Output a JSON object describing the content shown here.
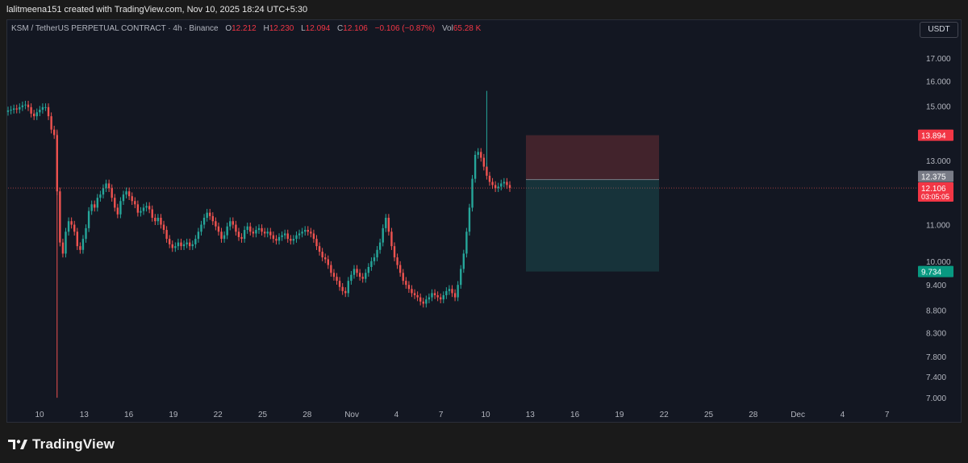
{
  "header": {
    "credit": "lalitmeena151 created with TradingView.com, Nov 10, 2025 18:24 UTC+5:30"
  },
  "legend": {
    "symbol": "KSM / TetherUS PERPETUAL CONTRACT · 4h · Binance",
    "o_label": "O",
    "o_value": "12.212",
    "h_label": "H",
    "h_value": "12.230",
    "l_label": "L",
    "l_value": "12.094",
    "c_label": "C",
    "c_value": "12.106",
    "change": "−0.106 (−0.87%)",
    "vol_label": "Vol",
    "vol_value": "65.28 K"
  },
  "currency_button": "USDT",
  "brand": {
    "name": "TradingView",
    "icon": "tradingview-logo-icon"
  },
  "colors": {
    "up": "#26a69a",
    "down": "#ef5350",
    "stop_zone": "#ef5350",
    "target_zone": "#26a69a",
    "background": "#131722"
  },
  "chart_data": {
    "type": "candlestick",
    "interval": "4h",
    "y_axis": {
      "ticks": [
        "17.000",
        "16.000",
        "15.000",
        "13.000",
        "11.000",
        "10.000",
        "9.400",
        "8.800",
        "8.300",
        "7.800",
        "7.400",
        "7.000"
      ],
      "scale": "log"
    },
    "x_axis": {
      "ticks": [
        "10",
        "13",
        "16",
        "19",
        "22",
        "25",
        "28",
        "Nov",
        "4",
        "7",
        "10",
        "13",
        "16",
        "19",
        "22",
        "25",
        "28",
        "Dec",
        "4",
        "7"
      ]
    },
    "price_labels": {
      "stop": "13.894",
      "entry": "12.375",
      "last_price": "12.106",
      "countdown": "03:05:05",
      "target": "9.734"
    },
    "position": {
      "entry": 12.375,
      "stop": 13.894,
      "target": 9.734,
      "start_index": 0,
      "end_index": 0
    },
    "closes": [
      14.82,
      14.85,
      14.9,
      14.86,
      14.95,
      15.02,
      15.05,
      14.95,
      14.7,
      14.6,
      14.75,
      14.85,
      14.95,
      14.95,
      14.6,
      14.1,
      13.9,
      12.0,
      10.5,
      10.2,
      10.8,
      11.1,
      11.0,
      10.8,
      10.4,
      10.3,
      10.6,
      10.9,
      11.4,
      11.6,
      11.5,
      11.8,
      11.9,
      12.1,
      12.25,
      12.1,
      11.8,
      11.5,
      11.3,
      11.7,
      11.9,
      12.0,
      11.85,
      11.7,
      11.6,
      11.35,
      11.4,
      11.5,
      11.55,
      11.45,
      11.2,
      11.1,
      11.2,
      11.0,
      10.85,
      10.6,
      10.45,
      10.35,
      10.4,
      10.5,
      10.4,
      10.45,
      10.5,
      10.4,
      10.45,
      10.6,
      10.8,
      11.0,
      11.2,
      11.35,
      11.25,
      11.1,
      10.95,
      10.8,
      10.6,
      10.7,
      10.95,
      11.1,
      11.0,
      10.8,
      10.65,
      10.6,
      10.85,
      10.95,
      10.8,
      10.75,
      10.85,
      10.9,
      10.8,
      10.75,
      10.8,
      10.7,
      10.6,
      10.55,
      10.65,
      10.7,
      10.75,
      10.6,
      10.55,
      10.6,
      10.7,
      10.75,
      10.8,
      10.85,
      10.8,
      10.75,
      10.6,
      10.4,
      10.25,
      10.1,
      10.05,
      9.9,
      9.7,
      9.6,
      9.5,
      9.35,
      9.25,
      9.2,
      9.5,
      9.65,
      9.8,
      9.7,
      9.6,
      9.55,
      9.7,
      9.85,
      10.0,
      10.1,
      10.3,
      10.5,
      10.9,
      11.2,
      10.8,
      10.4,
      10.1,
      9.9,
      9.7,
      9.5,
      9.4,
      9.3,
      9.2,
      9.15,
      9.1,
      9.0,
      8.95,
      9.05,
      9.1,
      9.2,
      9.15,
      9.1,
      9.05,
      9.15,
      9.25,
      9.3,
      9.2,
      9.1,
      9.4,
      9.8,
      10.2,
      10.8,
      11.5,
      12.4,
      13.2,
      13.3,
      13.1,
      12.8,
      12.5,
      12.3,
      12.2,
      12.1,
      12.15,
      12.25,
      12.3,
      12.2,
      12.106
    ],
    "y_domain": [
      6.9,
      17.8
    ]
  }
}
